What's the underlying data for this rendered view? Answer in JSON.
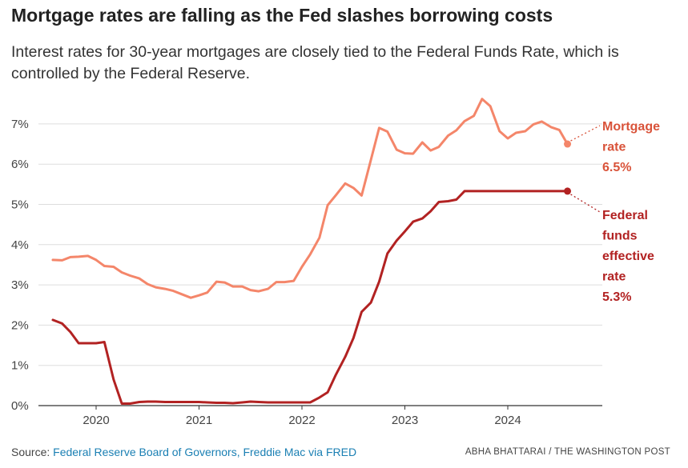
{
  "header": {
    "title": "Mortgage rates are falling as the Fed slashes borrowing costs",
    "subtitle": "Interest rates for 30-year mortgages are closely tied to the Federal Funds Rate, which is controlled by the Federal Reserve."
  },
  "footer": {
    "source_prefix": "Source: ",
    "source_link": "Federal Reserve Board of Governors, Freddie Mac via FRED",
    "credit": "ABHA BHATTARAI / THE WASHINGTON POST"
  },
  "colors": {
    "mortgage": "#f4866a",
    "fed": "#b22222",
    "mortgage_label": "#d9533a",
    "fed_label": "#b22222",
    "grid": "#dddddd",
    "axis": "#333333"
  },
  "chart_data": {
    "type": "line",
    "title": "Mortgage rates are falling as the Fed slashes borrowing costs",
    "xlabel": "",
    "ylabel": "",
    "xlim": [
      2019.58,
      2024.75
    ],
    "ylim": [
      0,
      7
    ],
    "x_ticks": [
      "2020",
      "2021",
      "2022",
      "2023",
      "2024"
    ],
    "x_tick_values": [
      2020,
      2021,
      2022,
      2023,
      2024
    ],
    "y_ticks": [
      "0%",
      "1%",
      "2%",
      "3%",
      "4%",
      "5%",
      "6%",
      "7%"
    ],
    "y_tick_values": [
      0,
      1,
      2,
      3,
      4,
      5,
      6,
      7
    ],
    "grid": true,
    "legend": "direct labels at right end of lines",
    "series": [
      {
        "name": "Mortgage rate",
        "label_lines": [
          "Mortgage",
          "rate",
          "6.5%"
        ],
        "x": [
          2019.58,
          2019.67,
          2019.75,
          2019.83,
          2019.92,
          2020.0,
          2020.08,
          2020.17,
          2020.25,
          2020.33,
          2020.42,
          2020.5,
          2020.58,
          2020.67,
          2020.75,
          2020.83,
          2020.92,
          2021.0,
          2021.08,
          2021.17,
          2021.25,
          2021.33,
          2021.42,
          2021.5,
          2021.58,
          2021.67,
          2021.75,
          2021.83,
          2021.92,
          2022.0,
          2022.08,
          2022.17,
          2022.25,
          2022.33,
          2022.42,
          2022.5,
          2022.58,
          2022.67,
          2022.75,
          2022.83,
          2022.92,
          2023.0,
          2023.08,
          2023.17,
          2023.25,
          2023.33,
          2023.42,
          2023.5,
          2023.58,
          2023.67,
          2023.75,
          2023.83,
          2023.92,
          2024.0,
          2024.08,
          2024.17,
          2024.25,
          2024.33,
          2024.42,
          2024.5,
          2024.58
        ],
        "values": [
          3.62,
          3.61,
          3.69,
          3.7,
          3.72,
          3.62,
          3.47,
          3.45,
          3.31,
          3.23,
          3.16,
          3.02,
          2.94,
          2.9,
          2.85,
          2.77,
          2.68,
          2.74,
          2.81,
          3.08,
          3.06,
          2.96,
          2.96,
          2.87,
          2.84,
          2.9,
          3.07,
          3.07,
          3.1,
          3.45,
          3.76,
          4.17,
          4.98,
          5.23,
          5.52,
          5.41,
          5.22,
          6.11,
          6.9,
          6.81,
          6.36,
          6.27,
          6.26,
          6.54,
          6.34,
          6.43,
          6.71,
          6.84,
          7.07,
          7.2,
          7.62,
          7.44,
          6.82,
          6.64,
          6.78,
          6.82,
          6.99,
          7.06,
          6.92,
          6.85,
          6.5
        ]
      },
      {
        "name": "Federal funds effective rate",
        "label_lines": [
          "Federal",
          "funds",
          "effective",
          "rate",
          "5.3%"
        ],
        "x": [
          2019.58,
          2019.67,
          2019.75,
          2019.83,
          2019.92,
          2020.0,
          2020.08,
          2020.17,
          2020.25,
          2020.33,
          2020.42,
          2020.5,
          2020.58,
          2020.67,
          2020.75,
          2020.83,
          2020.92,
          2021.0,
          2021.08,
          2021.17,
          2021.25,
          2021.33,
          2021.42,
          2021.5,
          2021.58,
          2021.67,
          2021.75,
          2021.83,
          2021.92,
          2022.0,
          2022.08,
          2022.17,
          2022.25,
          2022.33,
          2022.42,
          2022.5,
          2022.58,
          2022.67,
          2022.75,
          2022.83,
          2022.92,
          2023.0,
          2023.08,
          2023.17,
          2023.25,
          2023.33,
          2023.42,
          2023.5,
          2023.58,
          2023.67,
          2023.75,
          2023.83,
          2023.92,
          2024.0,
          2024.08,
          2024.17,
          2024.25,
          2024.33,
          2024.42,
          2024.5,
          2024.58
        ],
        "values": [
          2.13,
          2.04,
          1.83,
          1.55,
          1.55,
          1.55,
          1.58,
          0.65,
          0.05,
          0.05,
          0.09,
          0.1,
          0.1,
          0.09,
          0.09,
          0.09,
          0.09,
          0.09,
          0.08,
          0.07,
          0.07,
          0.06,
          0.08,
          0.1,
          0.09,
          0.08,
          0.08,
          0.08,
          0.08,
          0.08,
          0.08,
          0.2,
          0.33,
          0.77,
          1.21,
          1.68,
          2.33,
          2.56,
          3.08,
          3.78,
          4.1,
          4.33,
          4.57,
          4.65,
          4.83,
          5.06,
          5.08,
          5.12,
          5.33,
          5.33,
          5.33,
          5.33,
          5.33,
          5.33,
          5.33,
          5.33,
          5.33,
          5.33,
          5.33,
          5.33,
          5.33
        ]
      }
    ]
  }
}
